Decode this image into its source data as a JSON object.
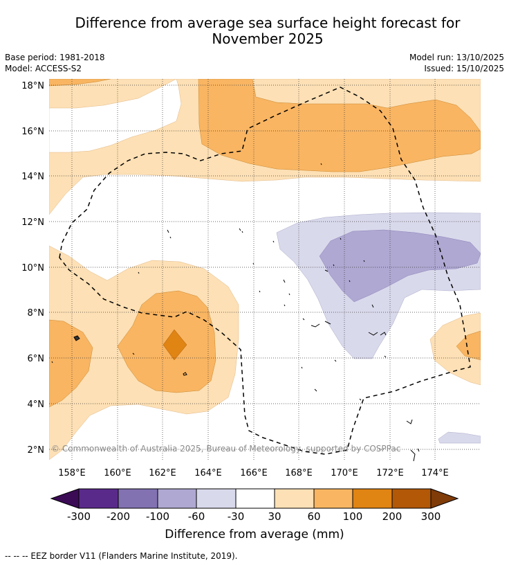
{
  "title": {
    "line1": "Difference from average sea surface height forecast for",
    "line2": "November 2025"
  },
  "meta": {
    "base_period": "Base period: 1981-2018",
    "model": "Model: ACCESS-S2",
    "model_run": "Model run: 13/10/2025",
    "issued": "Issued: 15/10/2025"
  },
  "map": {
    "lat_labels": [
      "18°N",
      "16°N",
      "14°N",
      "12°N",
      "10°N",
      "8°N",
      "6°N",
      "4°N",
      "2°N"
    ],
    "lon_labels": [
      "158°E",
      "160°E",
      "162°E",
      "164°E",
      "166°E",
      "168°E",
      "170°E",
      "172°E",
      "174°E"
    ],
    "copyright": "© Commonwealth of Australia 2025, Bureau of Meteorology, supported by COSPPac",
    "eez_note": "--  --  -- EEZ border V11 (Flanders Marine Institute, 2019)."
  },
  "colorbar": {
    "label": "Difference from average (mm)",
    "ticks": [
      "-300",
      "-200",
      "-100",
      "-60",
      "-30",
      "30",
      "60",
      "100",
      "200",
      "300"
    ],
    "colors": [
      "#3b0b55",
      "#5a2a8a",
      "#8272b2",
      "#afa8d2",
      "#d9d9ec",
      "#ffffff",
      "#fde0b5",
      "#f9b562",
      "#e08413",
      "#b25807",
      "#7f3b08"
    ]
  }
}
